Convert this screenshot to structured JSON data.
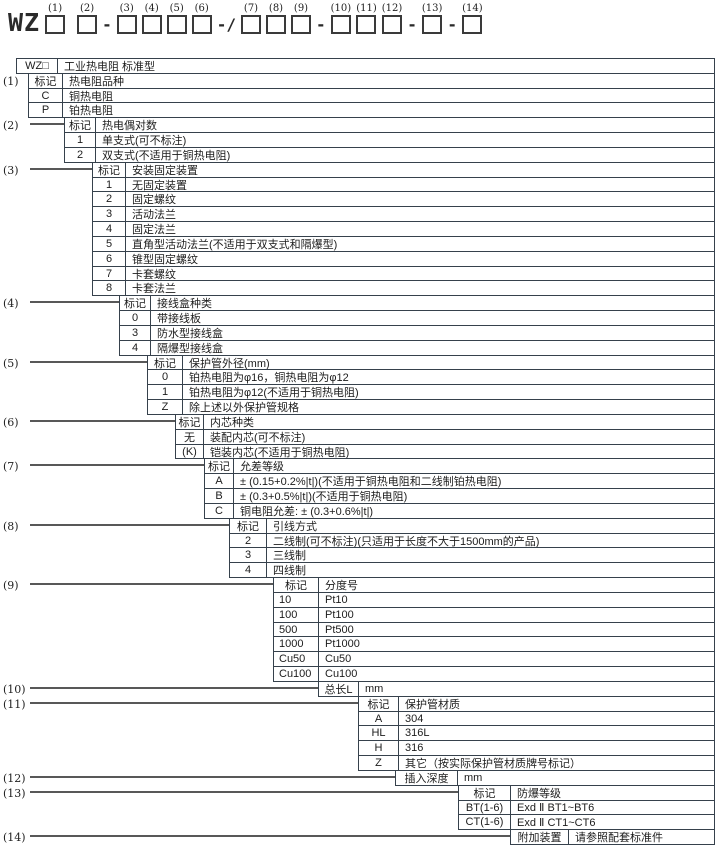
{
  "title_code": {
    "prefix": "WZ",
    "tokens": [
      {
        "type": "box",
        "label": "(1)"
      },
      {
        "type": "space"
      },
      {
        "type": "box",
        "label": "(2)"
      },
      {
        "type": "sep",
        "value": "-"
      },
      {
        "type": "box",
        "label": "(3)"
      },
      {
        "type": "box",
        "label": "(4)"
      },
      {
        "type": "box",
        "label": "(5)"
      },
      {
        "type": "box",
        "label": "(6)"
      },
      {
        "type": "sep",
        "value": "-/"
      },
      {
        "type": "box",
        "label": "(7)"
      },
      {
        "type": "box",
        "label": "(8)"
      },
      {
        "type": "box",
        "label": "(9)"
      },
      {
        "type": "sep",
        "value": "-"
      },
      {
        "type": "box",
        "label": "(10)"
      },
      {
        "type": "box",
        "label": "(11)"
      },
      {
        "type": "box",
        "label": "(12)"
      },
      {
        "type": "sep",
        "value": "-"
      },
      {
        "type": "box",
        "label": "(13)"
      },
      {
        "type": "sep",
        "value": "-"
      },
      {
        "type": "box",
        "label": "(14)"
      }
    ]
  },
  "legend": {
    "groups": [
      {
        "num": "",
        "rows": [
          {
            "key": "WZ□",
            "desc": "工业热电阻 标准型"
          }
        ]
      },
      {
        "num": "(1)",
        "rows": [
          {
            "key": "标记",
            "desc": "热电阻品种"
          },
          {
            "key": "C",
            "desc": "铜热电阻"
          },
          {
            "key": "P",
            "desc": "铂热电阻"
          }
        ]
      },
      {
        "num": "(2)",
        "rows": [
          {
            "key": "标记",
            "desc": "热电偶对数"
          },
          {
            "key": "1",
            "desc": "单支式(可不标注)"
          },
          {
            "key": "2",
            "desc": "双支式(不适用于铜热电阻)"
          }
        ]
      },
      {
        "num": "(3)",
        "rows": [
          {
            "key": "标记",
            "desc": "安装固定装置"
          },
          {
            "key": "1",
            "desc": "无固定装置"
          },
          {
            "key": "2",
            "desc": "固定螺纹"
          },
          {
            "key": "3",
            "desc": "活动法兰"
          },
          {
            "key": "4",
            "desc": "固定法兰"
          },
          {
            "key": "5",
            "desc": "直角型活动法兰(不适用于双支式和隔爆型)"
          },
          {
            "key": "6",
            "desc": "锥型固定螺纹"
          },
          {
            "key": "7",
            "desc": "卡套螺纹"
          },
          {
            "key": "8",
            "desc": "卡套法兰"
          }
        ]
      },
      {
        "num": "(4)",
        "rows": [
          {
            "key": "标记",
            "desc": "接线盒种类"
          },
          {
            "key": "0",
            "desc": "带接线板"
          },
          {
            "key": "3",
            "desc": "防水型接线盒"
          },
          {
            "key": "4",
            "desc": "隔爆型接线盒"
          }
        ]
      },
      {
        "num": "(5)",
        "rows": [
          {
            "key": "标记",
            "desc": "保护管外径(mm)"
          },
          {
            "key": "0",
            "desc": "铂热电阻为φ16，铜热电阻为φ12"
          },
          {
            "key": "1",
            "desc": "铂热电阻为φ12(不适用于铜热电阻)"
          },
          {
            "key": "Z",
            "desc": "除上述以外保护管规格"
          }
        ]
      },
      {
        "num": "(6)",
        "rows": [
          {
            "key": "标记",
            "desc": "内芯种类"
          },
          {
            "key": "无",
            "desc": "装配内芯(可不标注)"
          },
          {
            "key": "(K)",
            "desc": "铠装内芯(不适用于铜热电阻)"
          }
        ]
      },
      {
        "num": "(7)",
        "rows": [
          {
            "key": "标记",
            "desc": "允差等级"
          },
          {
            "key": "A",
            "desc": "± (0.15+0.2%|t|)(不适用于铜热电阻和二线制铂热电阻)"
          },
          {
            "key": "B",
            "desc": "± (0.3+0.5%|t|)(不适用于铜热电阻)"
          },
          {
            "key": "C",
            "desc": "铜电阻允差: ± (0.3+0.6%|t|)"
          }
        ]
      },
      {
        "num": "(8)",
        "rows": [
          {
            "key": "标记",
            "desc": "引线方式"
          },
          {
            "key": "2",
            "desc": "二线制(可不标注)(只适用于长度不大于1500mm的产品)"
          },
          {
            "key": "3",
            "desc": "三线制"
          },
          {
            "key": "4",
            "desc": "四线制"
          }
        ]
      },
      {
        "num": "(9)",
        "rows": [
          {
            "key": "标记",
            "desc": "分度号"
          },
          {
            "key": "10",
            "desc": "Pt10"
          },
          {
            "key": "100",
            "desc": "Pt100"
          },
          {
            "key": "500",
            "desc": "Pt500"
          },
          {
            "key": "1000",
            "desc": "Pt1000"
          },
          {
            "key": "Cu50",
            "desc": "Cu50"
          },
          {
            "key": "Cu100",
            "desc": "Cu100"
          }
        ]
      },
      {
        "num": "(10)",
        "rows": [
          {
            "key": "总长L",
            "desc": "mm"
          }
        ]
      },
      {
        "num": "(11)",
        "rows": [
          {
            "key": "标记",
            "desc": "保护管材质"
          },
          {
            "key": "A",
            "desc": "304"
          },
          {
            "key": "HL",
            "desc": "316L"
          },
          {
            "key": "H",
            "desc": "316"
          },
          {
            "key": "Z",
            "desc": "其它（按实际保护管材质牌号标记）"
          }
        ]
      },
      {
        "num": "(12)",
        "rows": [
          {
            "key": "插入深度",
            "desc": "mm"
          }
        ]
      },
      {
        "num": "(13)",
        "rows": [
          {
            "key": "标记",
            "desc": "防爆等级"
          },
          {
            "key": "BT(1-6)",
            "desc": "Exd Ⅱ BT1~BT6"
          },
          {
            "key": "CT(1-6)",
            "desc": "Exd Ⅱ CT1~CT6"
          }
        ]
      },
      {
        "num": "(14)",
        "rows": [
          {
            "key": "附加装置",
            "desc": "请参照配套标准件"
          }
        ]
      }
    ]
  },
  "colors": {
    "border": "#36414c",
    "text": "#1c1c1c",
    "connector": "#585858",
    "background": "#ffffff"
  }
}
